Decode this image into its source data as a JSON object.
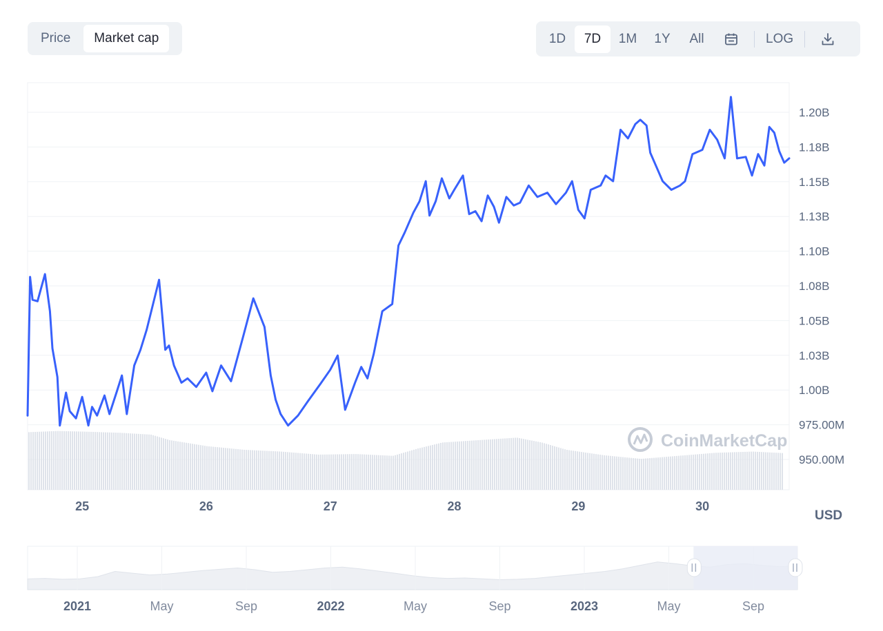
{
  "toggle": {
    "price_label": "Price",
    "market_cap_label": "Market cap",
    "active": "Market cap"
  },
  "ranges": {
    "d1": "1D",
    "d7": "7D",
    "m1": "1M",
    "y1": "1Y",
    "all": "All",
    "active": "7D",
    "log_label": "LOG"
  },
  "icons": {
    "calendar": "calendar-icon",
    "download": "download-icon",
    "watermark": "coinmarketcap-logo"
  },
  "currency_label": "USD",
  "watermark": "CoinMarketCap",
  "colors": {
    "line": "#3861fb",
    "volume": "#dfe3ea",
    "grid": "#eff2f5",
    "navigator_fill": "#e9ecf6"
  },
  "chart_data": {
    "type": "line",
    "y_axis_ticks": [
      "1.20B",
      "1.18B",
      "1.15B",
      "1.13B",
      "1.10B",
      "1.08B",
      "1.05B",
      "1.03B",
      "1.00B",
      "975.00M",
      "950.00M"
    ],
    "ylim": [
      930000000,
      1215000000
    ],
    "x_axis_ticks": [
      "25",
      "26",
      "27",
      "28",
      "29",
      "30"
    ],
    "xlim": [
      24.56,
      30.7
    ],
    "grid": "horizontal",
    "series": [
      {
        "x": [
          24.56,
          24.58,
          24.6,
          24.64,
          24.7,
          24.74,
          24.76,
          24.8,
          24.82,
          24.87,
          24.9,
          24.95,
          25.0,
          25.05,
          25.08,
          25.12,
          25.18,
          25.22,
          25.28,
          25.32,
          25.36,
          25.42,
          25.47,
          25.52,
          25.56,
          25.62,
          25.67,
          25.7,
          25.74,
          25.8,
          25.85,
          25.92,
          26.0,
          26.05,
          26.12,
          26.2,
          26.3,
          26.38,
          26.47,
          26.52,
          26.56,
          26.6,
          26.66,
          26.74,
          26.82,
          26.92,
          27.0,
          27.06,
          27.12,
          27.2,
          27.25,
          27.3,
          27.35,
          27.42,
          27.5,
          27.55,
          27.6,
          27.67,
          27.72,
          27.77,
          27.8,
          27.85,
          27.9,
          27.96,
          28.0,
          28.07,
          28.12,
          28.17,
          28.22,
          28.27,
          28.32,
          28.36,
          28.42,
          28.48,
          28.53,
          28.6,
          28.67,
          28.75,
          28.82,
          28.9,
          28.95,
          29.0,
          29.05,
          29.1,
          29.18,
          29.22,
          29.28,
          29.34,
          29.4,
          29.46,
          29.5,
          29.55,
          29.58,
          29.63,
          29.68,
          29.75,
          29.82,
          29.86,
          29.92,
          30.0,
          30.06,
          30.12,
          30.18,
          30.23,
          30.28,
          30.35,
          30.4,
          30.45,
          30.5,
          30.54,
          30.58,
          30.62,
          30.66,
          30.7
        ],
        "y": [
          982000000,
          1079000000,
          1063000000,
          1062000000,
          1081000000,
          1055000000,
          1029000000,
          1009000000,
          975000000,
          998000000,
          985000000,
          980000000,
          995000000,
          975000000,
          988000000,
          982000000,
          996000000,
          983000000,
          999000000,
          1010000000,
          983000000,
          1017000000,
          1028000000,
          1042000000,
          1056000000,
          1077000000,
          1028000000,
          1031000000,
          1017000000,
          1005000000,
          1008000000,
          1002000000,
          1012000000,
          999000000,
          1017000000,
          1006000000,
          1038000000,
          1064000000,
          1044000000,
          1010000000,
          993000000,
          983000000,
          975000000,
          982000000,
          992000000,
          1004000000,
          1014000000,
          1024000000,
          986000000,
          1005000000,
          1016000000,
          1008000000,
          1025000000,
          1055000000,
          1060000000,
          1101000000,
          1110000000,
          1124000000,
          1132000000,
          1146000000,
          1122000000,
          1132000000,
          1148000000,
          1134000000,
          1140000000,
          1150000000,
          1123000000,
          1125000000,
          1118000000,
          1136000000,
          1128000000,
          1117000000,
          1135000000,
          1129000000,
          1131000000,
          1143000000,
          1135000000,
          1138000000,
          1130000000,
          1138000000,
          1146000000,
          1126000000,
          1120000000,
          1140000000,
          1143000000,
          1150000000,
          1146000000,
          1182000000,
          1176000000,
          1186000000,
          1189000000,
          1185000000,
          1166000000,
          1156000000,
          1146000000,
          1140000000,
          1143000000,
          1146000000,
          1165000000,
          1168000000,
          1182000000,
          1175000000,
          1162000000,
          1205000000,
          1162000000,
          1163000000,
          1150000000,
          1165000000,
          1157000000,
          1184000000,
          1180000000,
          1167000000,
          1159000000,
          1162000000
        ]
      }
    ],
    "volume_bars": [
      {
        "x": 24.56,
        "v": 0.95
      },
      {
        "x": 24.8,
        "v": 0.97
      },
      {
        "x": 25.0,
        "v": 0.96
      },
      {
        "x": 25.3,
        "v": 0.94
      },
      {
        "x": 25.55,
        "v": 0.91
      },
      {
        "x": 25.7,
        "v": 0.82
      },
      {
        "x": 26.0,
        "v": 0.72
      },
      {
        "x": 26.3,
        "v": 0.66
      },
      {
        "x": 26.6,
        "v": 0.63
      },
      {
        "x": 26.9,
        "v": 0.58
      },
      {
        "x": 27.2,
        "v": 0.59
      },
      {
        "x": 27.5,
        "v": 0.56
      },
      {
        "x": 27.7,
        "v": 0.68
      },
      {
        "x": 27.9,
        "v": 0.78
      },
      {
        "x": 28.2,
        "v": 0.82
      },
      {
        "x": 28.5,
        "v": 0.86
      },
      {
        "x": 28.7,
        "v": 0.78
      },
      {
        "x": 28.9,
        "v": 0.66
      },
      {
        "x": 29.2,
        "v": 0.57
      },
      {
        "x": 29.5,
        "v": 0.51
      },
      {
        "x": 29.8,
        "v": 0.56
      },
      {
        "x": 30.1,
        "v": 0.61
      },
      {
        "x": 30.4,
        "v": 0.63
      },
      {
        "x": 30.7,
        "v": 0.6
      }
    ]
  },
  "navigator": {
    "ticks": [
      {
        "label": "2021",
        "year": true
      },
      {
        "label": "May",
        "year": false
      },
      {
        "label": "Sep",
        "year": false
      },
      {
        "label": "2022",
        "year": true
      },
      {
        "label": "May",
        "year": false
      },
      {
        "label": "Sep",
        "year": false
      },
      {
        "label": "2023",
        "year": true
      },
      {
        "label": "May",
        "year": false
      },
      {
        "label": "Sep",
        "year": false
      }
    ],
    "profile": [
      0.25,
      0.26,
      0.24,
      0.25,
      0.3,
      0.42,
      0.38,
      0.34,
      0.36,
      0.4,
      0.44,
      0.47,
      0.5,
      0.46,
      0.4,
      0.42,
      0.46,
      0.5,
      0.52,
      0.48,
      0.43,
      0.38,
      0.32,
      0.28,
      0.26,
      0.27,
      0.25,
      0.23,
      0.24,
      0.26,
      0.3,
      0.34,
      0.38,
      0.42,
      0.48,
      0.56,
      0.64,
      0.6,
      0.55,
      0.52,
      0.58,
      0.6,
      0.56,
      0.53,
      0.55
    ],
    "selected_window_fraction": [
      0.865,
      1.0
    ]
  }
}
